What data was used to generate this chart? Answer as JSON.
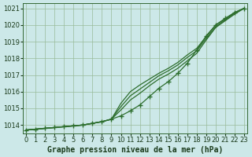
{
  "xlabel": "Graphe pression niveau de la mer (hPa)",
  "x": [
    0,
    1,
    2,
    3,
    4,
    5,
    6,
    7,
    8,
    9,
    10,
    11,
    12,
    13,
    14,
    15,
    16,
    17,
    18,
    19,
    20,
    21,
    22,
    23
  ],
  "line1": [
    1013.7,
    1013.75,
    1013.8,
    1013.85,
    1013.9,
    1013.95,
    1014.0,
    1014.1,
    1014.2,
    1014.35,
    1014.9,
    1015.5,
    1015.9,
    1016.35,
    1016.75,
    1017.05,
    1017.4,
    1017.85,
    1018.3,
    1019.1,
    1019.85,
    1020.25,
    1020.65,
    1021.0
  ],
  "line2": [
    1013.7,
    1013.75,
    1013.8,
    1013.85,
    1013.9,
    1013.95,
    1014.0,
    1014.1,
    1014.2,
    1014.35,
    1015.1,
    1015.75,
    1016.15,
    1016.55,
    1016.95,
    1017.25,
    1017.6,
    1018.05,
    1018.45,
    1019.2,
    1019.9,
    1020.3,
    1020.7,
    1021.0
  ],
  "line3": [
    1013.7,
    1013.75,
    1013.8,
    1013.85,
    1013.9,
    1013.95,
    1014.0,
    1014.1,
    1014.2,
    1014.35,
    1015.3,
    1016.0,
    1016.4,
    1016.75,
    1017.1,
    1017.4,
    1017.75,
    1018.2,
    1018.6,
    1019.3,
    1020.0,
    1020.35,
    1020.75,
    1021.0
  ],
  "line4_marked": [
    1013.7,
    1013.75,
    1013.8,
    1013.85,
    1013.9,
    1013.95,
    1014.0,
    1014.1,
    1014.2,
    1014.35,
    1014.55,
    1014.85,
    1015.2,
    1015.7,
    1016.2,
    1016.6,
    1017.1,
    1017.7,
    1018.5,
    1019.35,
    1020.0,
    1020.4,
    1020.75,
    1021.0
  ],
  "line_color": "#2d6e2d",
  "bg_color": "#cce8e8",
  "grid_color": "#99bb99",
  "ylim": [
    1013.5,
    1021.3
  ],
  "yticks": [
    1014,
    1015,
    1016,
    1017,
    1018,
    1019,
    1020,
    1021
  ],
  "xticks": [
    0,
    1,
    2,
    3,
    4,
    5,
    6,
    7,
    8,
    9,
    10,
    11,
    12,
    13,
    14,
    15,
    16,
    17,
    18,
    19,
    20,
    21,
    22,
    23
  ],
  "xlabel_fontsize": 7,
  "tick_fontsize": 6
}
